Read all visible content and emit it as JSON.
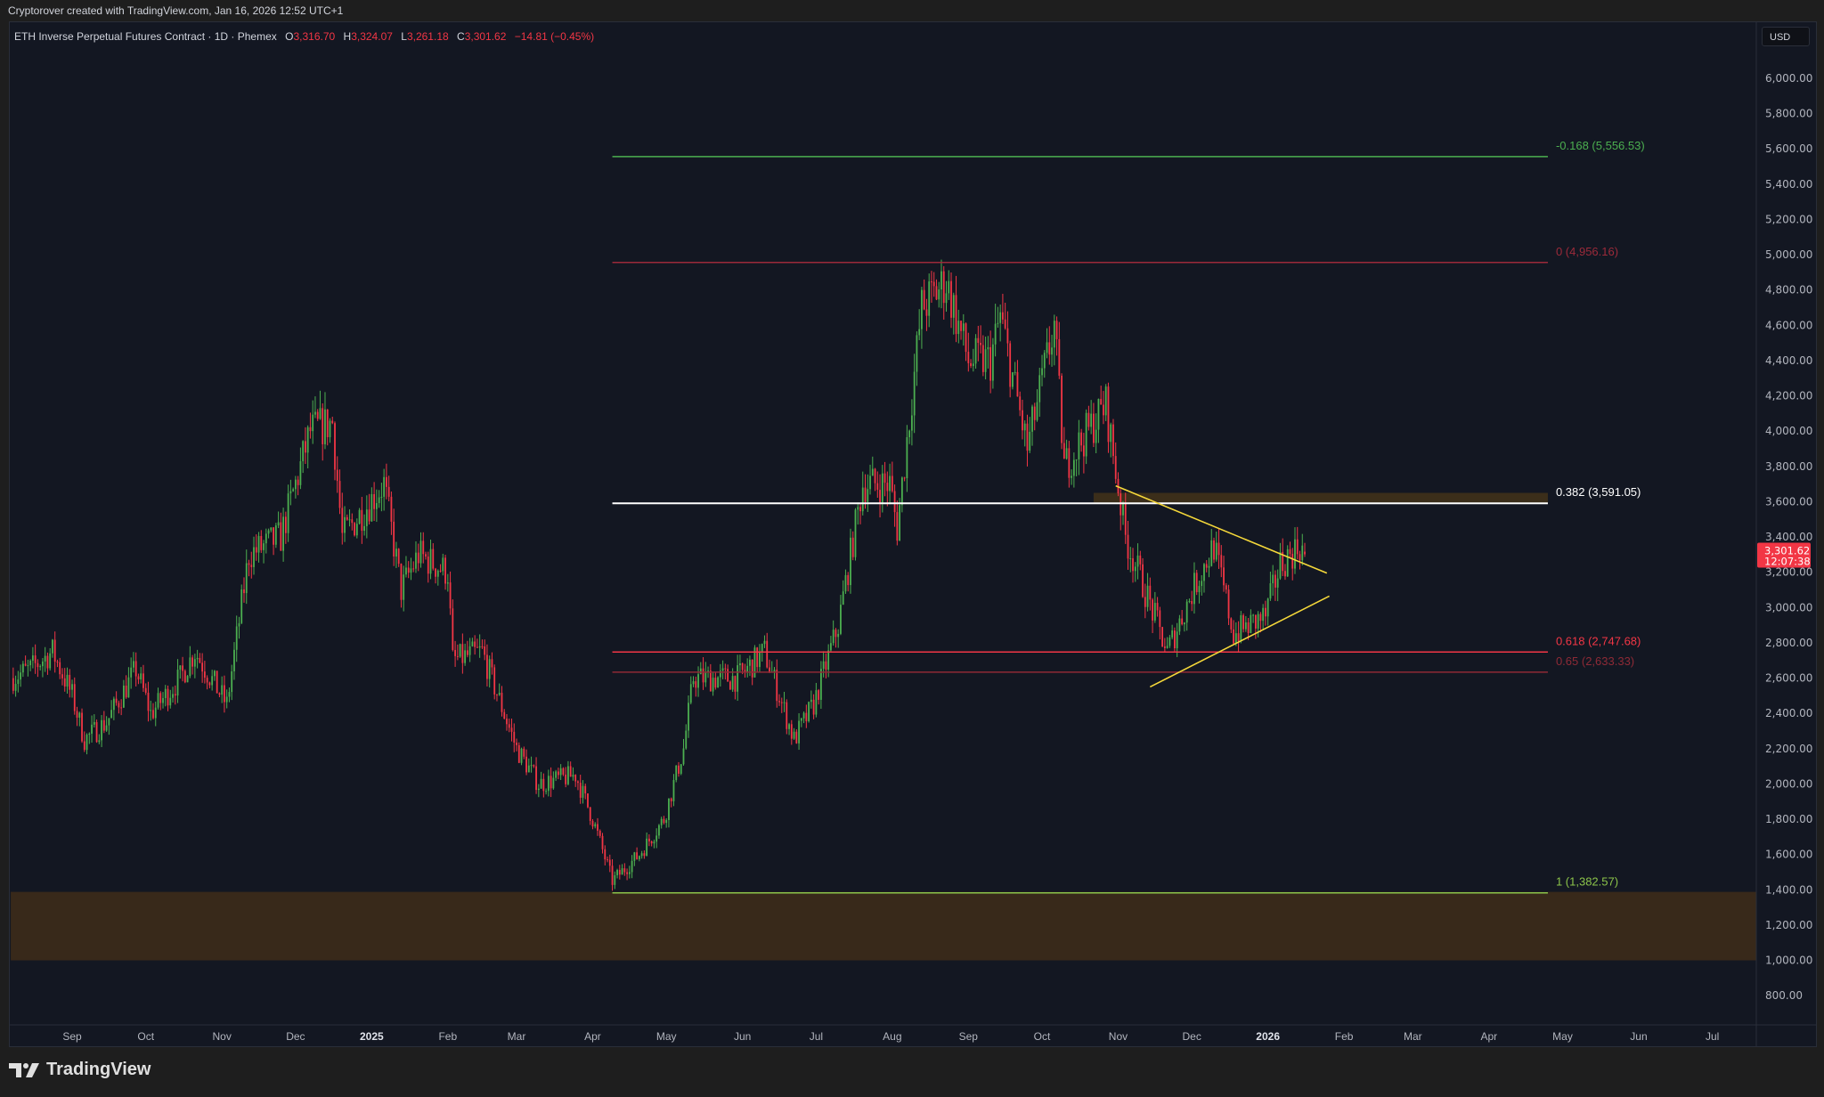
{
  "topbar": {
    "credit": "Cryptorover created with TradingView.com, Jan 16, 2026 12:52 UTC+1"
  },
  "legend": {
    "symbol": "ETH Inverse Perpetual Futures Contract · 1D · Phemex",
    "o_label": "O",
    "o": "3,316.70",
    "h_label": "H",
    "h": "3,324.07",
    "l_label": "L",
    "l": "3,261.18",
    "c_label": "C",
    "c": "3,301.62",
    "change": "−14.81 (−0.45%)"
  },
  "price_axis": {
    "currency": "USD",
    "ticks": [
      "6,000.00",
      "5,800.00",
      "5,600.00",
      "5,400.00",
      "5,200.00",
      "5,000.00",
      "4,800.00",
      "4,600.00",
      "4,400.00",
      "4,200.00",
      "4,000.00",
      "3,800.00",
      "3,600.00",
      "3,400.00",
      "3,200.00",
      "3,000.00",
      "2,800.00",
      "2,600.00",
      "2,400.00",
      "2,200.00",
      "2,000.00",
      "1,800.00",
      "1,600.00",
      "1,400.00",
      "1,200.00",
      "1,000.00",
      "800.00"
    ],
    "last_price": "3,301.62",
    "countdown": "12:07:38"
  },
  "time_axis": {
    "ticks": [
      {
        "label": "Sep",
        "date": "2024-09-01"
      },
      {
        "label": "Oct",
        "date": "2024-10-01"
      },
      {
        "label": "Nov",
        "date": "2024-11-01"
      },
      {
        "label": "Dec",
        "date": "2024-12-01"
      },
      {
        "label": "2025",
        "date": "2025-01-01",
        "bold": true
      },
      {
        "label": "Feb",
        "date": "2025-02-01"
      },
      {
        "label": "Mar",
        "date": "2025-03-01"
      },
      {
        "label": "Apr",
        "date": "2025-04-01"
      },
      {
        "label": "May",
        "date": "2025-05-01"
      },
      {
        "label": "Jun",
        "date": "2025-06-01"
      },
      {
        "label": "Jul",
        "date": "2025-07-01"
      },
      {
        "label": "Aug",
        "date": "2025-08-01"
      },
      {
        "label": "Sep",
        "date": "2025-09-01"
      },
      {
        "label": "Oct",
        "date": "2025-10-01"
      },
      {
        "label": "Nov",
        "date": "2025-11-01"
      },
      {
        "label": "Dec",
        "date": "2025-12-01"
      },
      {
        "label": "2026",
        "date": "2026-01-01",
        "bold": true
      },
      {
        "label": "Feb",
        "date": "2026-02-01"
      },
      {
        "label": "Mar",
        "date": "2026-03-01"
      },
      {
        "label": "Apr",
        "date": "2026-04-01"
      },
      {
        "label": "May",
        "date": "2026-05-01"
      },
      {
        "label": "Jun",
        "date": "2026-06-01"
      },
      {
        "label": "Jul",
        "date": "2026-07-01"
      }
    ]
  },
  "chart_data": {
    "type": "candlestick",
    "interval": "1D",
    "ylim": [
      700,
      6200
    ],
    "colors": {
      "up": "#4caf50",
      "down": "#f23645",
      "background": "#131722"
    },
    "approx_closes": [
      [
        "2024-08-07",
        2600
      ],
      [
        "2024-08-15",
        2650
      ],
      [
        "2024-08-24",
        2750
      ],
      [
        "2024-09-01",
        2500
      ],
      [
        "2024-09-06",
        2250
      ],
      [
        "2024-09-15",
        2350
      ],
      [
        "2024-09-27",
        2650
      ],
      [
        "2024-10-03",
        2400
      ],
      [
        "2024-10-15",
        2600
      ],
      [
        "2024-10-21",
        2750
      ],
      [
        "2024-11-03",
        2450
      ],
      [
        "2024-11-12",
        3300
      ],
      [
        "2024-11-25",
        3400
      ],
      [
        "2024-12-07",
        4000
      ],
      [
        "2024-12-16",
        4050
      ],
      [
        "2024-12-20",
        3400
      ],
      [
        "2025-01-06",
        3700
      ],
      [
        "2025-01-13",
        3100
      ],
      [
        "2025-01-20",
        3300
      ],
      [
        "2025-02-01",
        3200
      ],
      [
        "2025-02-03",
        2700
      ],
      [
        "2025-02-15",
        2750
      ],
      [
        "2025-03-01",
        2200
      ],
      [
        "2025-03-10",
        2000
      ],
      [
        "2025-03-25",
        2050
      ],
      [
        "2025-04-01",
        1800
      ],
      [
        "2025-04-09",
        1450
      ],
      [
        "2025-04-20",
        1600
      ],
      [
        "2025-04-30",
        1800
      ],
      [
        "2025-05-08",
        2200
      ],
      [
        "2025-05-12",
        2600
      ],
      [
        "2025-05-30",
        2600
      ],
      [
        "2025-06-10",
        2750
      ],
      [
        "2025-06-22",
        2250
      ],
      [
        "2025-06-30",
        2450
      ],
      [
        "2025-07-10",
        2900
      ],
      [
        "2025-07-20",
        3700
      ],
      [
        "2025-07-31",
        3700
      ],
      [
        "2025-08-03",
        3450
      ],
      [
        "2025-08-13",
        4700
      ],
      [
        "2025-08-23",
        4850
      ],
      [
        "2025-09-01",
        4400
      ],
      [
        "2025-09-10",
        4400
      ],
      [
        "2025-09-14",
        4650
      ],
      [
        "2025-09-25",
        3900
      ],
      [
        "2025-10-06",
        4600
      ],
      [
        "2025-10-10",
        3800
      ],
      [
        "2025-10-27",
        4150
      ],
      [
        "2025-11-04",
        3400
      ],
      [
        "2025-11-21",
        2750
      ],
      [
        "2025-12-03",
        3150
      ],
      [
        "2025-12-10",
        3350
      ],
      [
        "2025-12-18",
        2850
      ],
      [
        "2025-12-31",
        2950
      ],
      [
        "2026-01-06",
        3250
      ],
      [
        "2026-01-14",
        3350
      ],
      [
        "2026-01-16",
        3301.62
      ]
    ],
    "fib_retracement": {
      "start_date": "2025-04-09",
      "end_date": "2026-04-25",
      "levels": [
        {
          "ratio": "-0.168",
          "price": 5556.53,
          "label": "-0.168 (5,556.53)",
          "color": "#4caf50"
        },
        {
          "ratio": "0",
          "price": 4956.16,
          "label": "0 (4,956.16)",
          "color": "#9c2a3a"
        },
        {
          "ratio": "0.382",
          "price": 3591.05,
          "label": "0.382 (3,591.05)",
          "color": "#ffffff"
        },
        {
          "ratio": "0.618",
          "price": 2747.68,
          "label": "0.618 (2,747.68)",
          "color": "#f23645"
        },
        {
          "ratio": "0.65",
          "price": 2633.33,
          "label": "0.65 (2,633.33)",
          "color": "#8e2a36"
        },
        {
          "ratio": "1",
          "price": 1382.57,
          "label": "1 (1,382.57)",
          "color": "#8bc34a"
        }
      ]
    },
    "zones": [
      {
        "from_date": "2024-08-07",
        "to_date": "2026-07-31",
        "top": 1388,
        "bottom": 1000,
        "color": "#3a2a1a"
      },
      {
        "from_date": "2025-10-22",
        "to_date": "2026-04-25",
        "top": 3650,
        "bottom": 3595,
        "color": "#3d2f1a"
      }
    ],
    "trendlines": [
      {
        "from": [
          "2025-10-31",
          3690
        ],
        "to": [
          "2026-01-25",
          3195
        ],
        "color": "#f5d83a"
      },
      {
        "from": [
          "2025-11-14",
          2550
        ],
        "to": [
          "2026-01-26",
          3065
        ],
        "color": "#f5d83a"
      }
    ]
  },
  "branding": {
    "logo_text": "TradingView"
  }
}
